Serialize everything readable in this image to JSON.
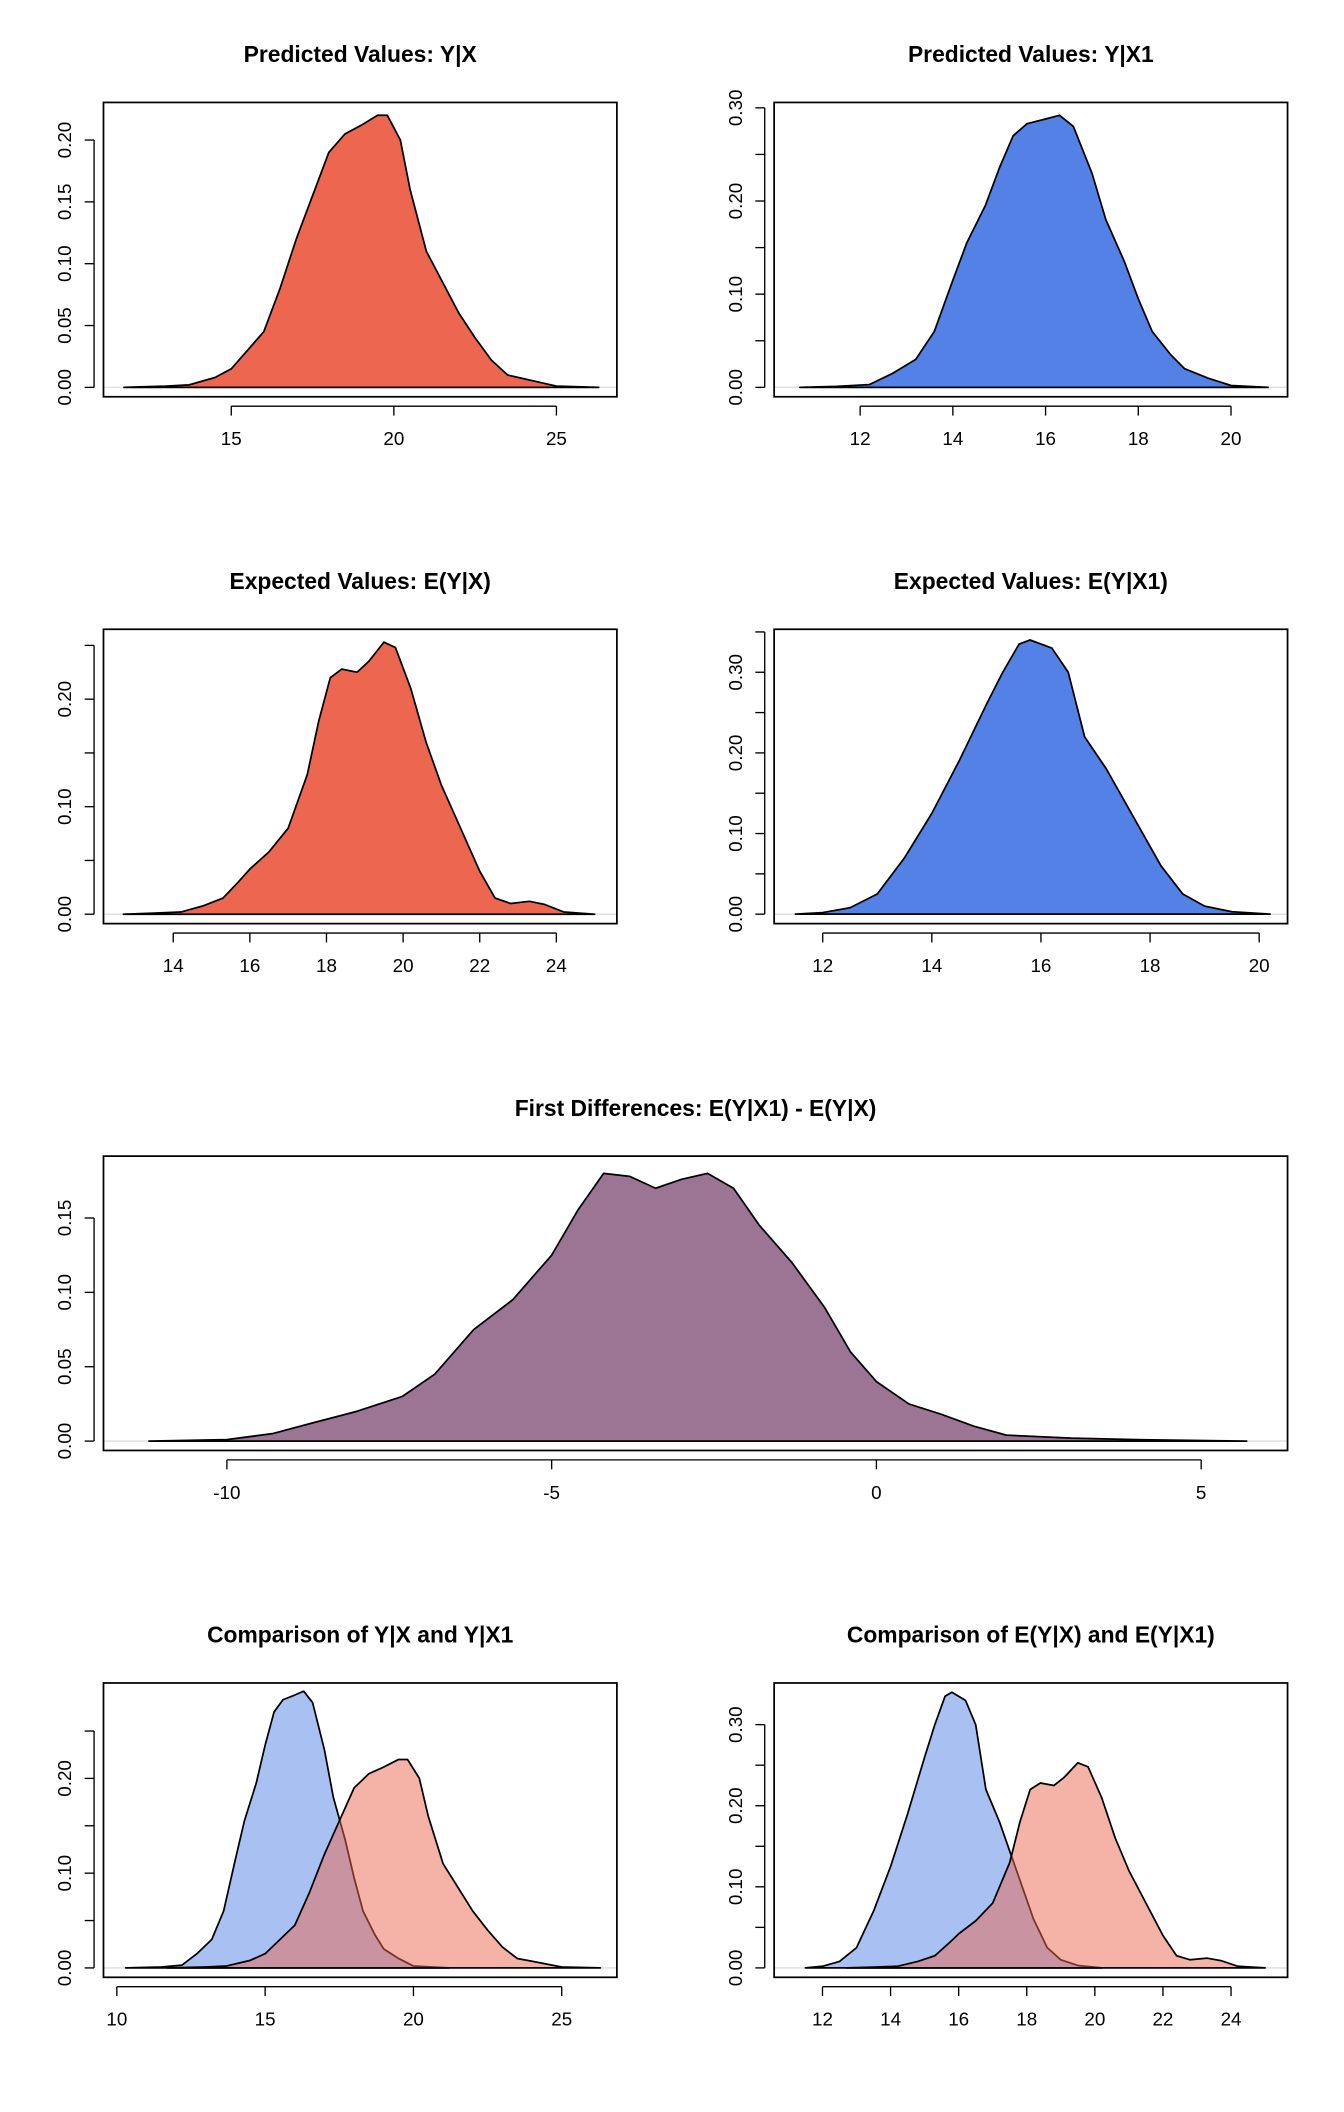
{
  "colors": {
    "red": "#EC6650",
    "blue": "#5381E6",
    "purple": "#9C7595",
    "red_light": "rgba(236,102,80,0.5)",
    "blue_light": "rgba(83,129,230,0.5)"
  },
  "chart_data": [
    {
      "type": "area",
      "title": "Predicted Values: Y|X",
      "xlim": [
        11.07,
        26.86
      ],
      "ylim": [
        -0.0076,
        0.2304
      ],
      "xticks": [
        15,
        20,
        25
      ],
      "yticks": [
        0,
        0.05,
        0.1,
        0.15,
        0.2
      ],
      "ytick_labels": [
        "0.00",
        "0.05",
        "0.10",
        "0.15",
        "0.20"
      ],
      "series": [
        {
          "color": "red",
          "x": [
            11.7,
            13,
            13.7,
            14.5,
            15,
            15.5,
            16,
            16.5,
            17,
            17.5,
            18,
            18.5,
            19,
            19.5,
            19.8,
            20.2,
            20.5,
            21,
            21.5,
            22,
            22.5,
            23,
            23.5,
            24,
            24.5,
            25,
            26.3
          ],
          "y": [
            0,
            0.001,
            0.002,
            0.008,
            0.015,
            0.03,
            0.045,
            0.08,
            0.12,
            0.155,
            0.19,
            0.205,
            0.212,
            0.22,
            0.22,
            0.2,
            0.16,
            0.11,
            0.085,
            0.06,
            0.04,
            0.022,
            0.01,
            0.007,
            0.004,
            0.001,
            0
          ]
        }
      ]
    },
    {
      "type": "area",
      "title": "Predicted Values: Y|X1",
      "xlim": [
        10.145,
        21.22
      ],
      "ylim": [
        -0.0101,
        0.3058
      ],
      "xticks": [
        12,
        14,
        16,
        18,
        20
      ],
      "yticks": [
        0,
        0.05,
        0.1,
        0.15,
        0.2,
        0.25,
        0.3
      ],
      "ytick_labels": [
        "0.00",
        "",
        "0.10",
        "",
        "0.20",
        "",
        "0.30"
      ],
      "series": [
        {
          "color": "blue",
          "x": [
            10.7,
            11.5,
            12.2,
            12.7,
            13.2,
            13.6,
            14,
            14.3,
            14.7,
            15,
            15.3,
            15.6,
            16,
            16.3,
            16.6,
            17,
            17.3,
            17.7,
            18,
            18.3,
            18.7,
            19,
            19.5,
            20,
            20.8
          ],
          "y": [
            0,
            0.001,
            0.003,
            0.015,
            0.03,
            0.06,
            0.115,
            0.155,
            0.195,
            0.235,
            0.27,
            0.283,
            0.288,
            0.292,
            0.28,
            0.23,
            0.18,
            0.135,
            0.095,
            0.06,
            0.035,
            0.02,
            0.01,
            0.002,
            0
          ]
        }
      ]
    },
    {
      "type": "area",
      "title": "Expected Values: E(Y|X)",
      "xlim": [
        12.18,
        25.58
      ],
      "ylim": [
        -0.00875,
        0.265
      ],
      "xticks": [
        14,
        16,
        18,
        20,
        22,
        24
      ],
      "yticks": [
        0,
        0.05,
        0.1,
        0.15,
        0.2,
        0.25
      ],
      "ytick_labels": [
        "0.00",
        "",
        "0.10",
        "",
        "0.20",
        ""
      ],
      "series": [
        {
          "color": "red",
          "x": [
            12.7,
            13.5,
            14.2,
            14.8,
            15.3,
            15.7,
            16,
            16.5,
            17,
            17.5,
            17.8,
            18.1,
            18.4,
            18.8,
            19.1,
            19.5,
            19.8,
            20.2,
            20.6,
            21,
            21.5,
            22,
            22.4,
            22.8,
            23.3,
            23.7,
            24.2,
            25
          ],
          "y": [
            0,
            0.001,
            0.002,
            0.008,
            0.015,
            0.03,
            0.042,
            0.058,
            0.08,
            0.13,
            0.18,
            0.22,
            0.228,
            0.225,
            0.235,
            0.253,
            0.248,
            0.21,
            0.16,
            0.12,
            0.08,
            0.04,
            0.015,
            0.01,
            0.012,
            0.009,
            0.002,
            0
          ]
        }
      ]
    },
    {
      "type": "area",
      "title": "Expected Values: E(Y|X1)",
      "xlim": [
        11.11,
        20.52
      ],
      "ylim": [
        -0.0117,
        0.3533
      ],
      "xticks": [
        12,
        14,
        16,
        18,
        20
      ],
      "yticks": [
        0,
        0.05,
        0.1,
        0.15,
        0.2,
        0.25,
        0.3,
        0.35
      ],
      "ytick_labels": [
        "0.00",
        "",
        "0.10",
        "",
        "0.20",
        "",
        "0.30",
        ""
      ],
      "series": [
        {
          "color": "blue",
          "x": [
            11.5,
            12,
            12.5,
            13,
            13.5,
            14,
            14.5,
            15,
            15.3,
            15.6,
            15.8,
            16.2,
            16.5,
            16.8,
            17.2,
            17.7,
            18.2,
            18.6,
            19,
            19.5,
            20.2
          ],
          "y": [
            0,
            0.002,
            0.008,
            0.025,
            0.07,
            0.125,
            0.19,
            0.26,
            0.3,
            0.335,
            0.34,
            0.33,
            0.3,
            0.22,
            0.18,
            0.12,
            0.06,
            0.025,
            0.01,
            0.003,
            0
          ]
        }
      ]
    },
    {
      "type": "area",
      "title": "First Differences: E(Y|X1) - E(Y|X)",
      "xlim": [
        -11.9,
        6.33
      ],
      "ylim": [
        -0.0063,
        0.1916
      ],
      "xticks": [
        -10,
        -5,
        0,
        5
      ],
      "yticks": [
        0,
        0.05,
        0.1,
        0.15
      ],
      "ytick_labels": [
        "0.00",
        "0.05",
        "0.10",
        "0.15"
      ],
      "series": [
        {
          "color": "purple",
          "x": [
            -11.2,
            -10,
            -9.3,
            -8.7,
            -8,
            -7.3,
            -6.8,
            -6.2,
            -5.6,
            -5,
            -4.6,
            -4.2,
            -3.8,
            -3.4,
            -3,
            -2.6,
            -2.2,
            -1.8,
            -1.3,
            -0.8,
            -0.4,
            0,
            0.5,
            1,
            1.5,
            2,
            3,
            4,
            5.7
          ],
          "y": [
            0,
            0.001,
            0.005,
            0.012,
            0.02,
            0.03,
            0.045,
            0.075,
            0.095,
            0.125,
            0.155,
            0.18,
            0.178,
            0.17,
            0.176,
            0.18,
            0.17,
            0.145,
            0.12,
            0.09,
            0.06,
            0.04,
            0.025,
            0.018,
            0.01,
            0.004,
            0.002,
            0.001,
            0
          ]
        }
      ]
    },
    {
      "type": "area",
      "title": "Comparison of Y|X and Y|X1",
      "xlim": [
        9.55,
        26.86
      ],
      "ylim": [
        -0.0099,
        0.3007
      ],
      "xticks": [
        10,
        15,
        20,
        25
      ],
      "yticks": [
        0,
        0.05,
        0.1,
        0.15,
        0.2,
        0.25
      ],
      "ytick_labels": [
        "0.00",
        "",
        "0.10",
        "",
        "0.20",
        ""
      ],
      "series": [
        {
          "color": "blue_light",
          "x": [
            10.3,
            11.5,
            12.2,
            12.7,
            13.2,
            13.6,
            14,
            14.3,
            14.7,
            15,
            15.3,
            15.6,
            16,
            16.3,
            16.6,
            17,
            17.3,
            17.7,
            18,
            18.3,
            18.7,
            19,
            19.5,
            20,
            21.2
          ],
          "y": [
            0,
            0.001,
            0.003,
            0.015,
            0.03,
            0.06,
            0.115,
            0.155,
            0.195,
            0.235,
            0.27,
            0.283,
            0.288,
            0.292,
            0.28,
            0.23,
            0.18,
            0.135,
            0.095,
            0.06,
            0.035,
            0.02,
            0.01,
            0.002,
            0
          ]
        },
        {
          "color": "red_light",
          "x": [
            11.7,
            13,
            13.7,
            14.5,
            15,
            15.5,
            16,
            16.5,
            17,
            17.5,
            18,
            18.5,
            19,
            19.5,
            19.8,
            20.2,
            20.5,
            21,
            21.5,
            22,
            22.5,
            23,
            23.5,
            24,
            24.5,
            25,
            26.3
          ],
          "y": [
            0,
            0.001,
            0.002,
            0.008,
            0.015,
            0.03,
            0.045,
            0.08,
            0.12,
            0.155,
            0.19,
            0.205,
            0.212,
            0.22,
            0.22,
            0.2,
            0.16,
            0.11,
            0.085,
            0.06,
            0.04,
            0.022,
            0.01,
            0.007,
            0.004,
            0.001,
            0
          ]
        }
      ]
    },
    {
      "type": "area",
      "title": "Comparison of E(Y|X) and E(Y|X1)",
      "xlim": [
        10.58,
        25.66
      ],
      "ylim": [
        -0.0116,
        0.3514
      ],
      "xticks": [
        12,
        14,
        16,
        18,
        20,
        22,
        24
      ],
      "yticks": [
        0,
        0.05,
        0.1,
        0.15,
        0.2,
        0.25,
        0.3
      ],
      "ytick_labels": [
        "0.00",
        "",
        "0.10",
        "",
        "0.20",
        "",
        "0.30"
      ],
      "series": [
        {
          "color": "blue_light",
          "x": [
            11.5,
            12,
            12.5,
            13,
            13.5,
            14,
            14.5,
            15,
            15.3,
            15.6,
            15.8,
            16.2,
            16.5,
            16.8,
            17.2,
            17.7,
            18.2,
            18.6,
            19,
            19.5,
            20.2
          ],
          "y": [
            0,
            0.002,
            0.008,
            0.025,
            0.07,
            0.125,
            0.19,
            0.26,
            0.3,
            0.335,
            0.34,
            0.33,
            0.3,
            0.22,
            0.18,
            0.12,
            0.06,
            0.025,
            0.01,
            0.003,
            0
          ]
        },
        {
          "color": "red_light",
          "x": [
            12.7,
            13.5,
            14.2,
            14.8,
            15.3,
            15.7,
            16,
            16.5,
            17,
            17.5,
            17.8,
            18.1,
            18.4,
            18.8,
            19.1,
            19.5,
            19.8,
            20.2,
            20.6,
            21,
            21.5,
            22,
            22.4,
            22.8,
            23.3,
            23.7,
            24.2,
            25
          ],
          "y": [
            0,
            0.001,
            0.002,
            0.008,
            0.015,
            0.03,
            0.042,
            0.058,
            0.08,
            0.13,
            0.18,
            0.22,
            0.228,
            0.225,
            0.235,
            0.253,
            0.248,
            0.21,
            0.16,
            0.12,
            0.08,
            0.04,
            0.015,
            0.01,
            0.012,
            0.009,
            0.002,
            0
          ]
        }
      ]
    }
  ]
}
